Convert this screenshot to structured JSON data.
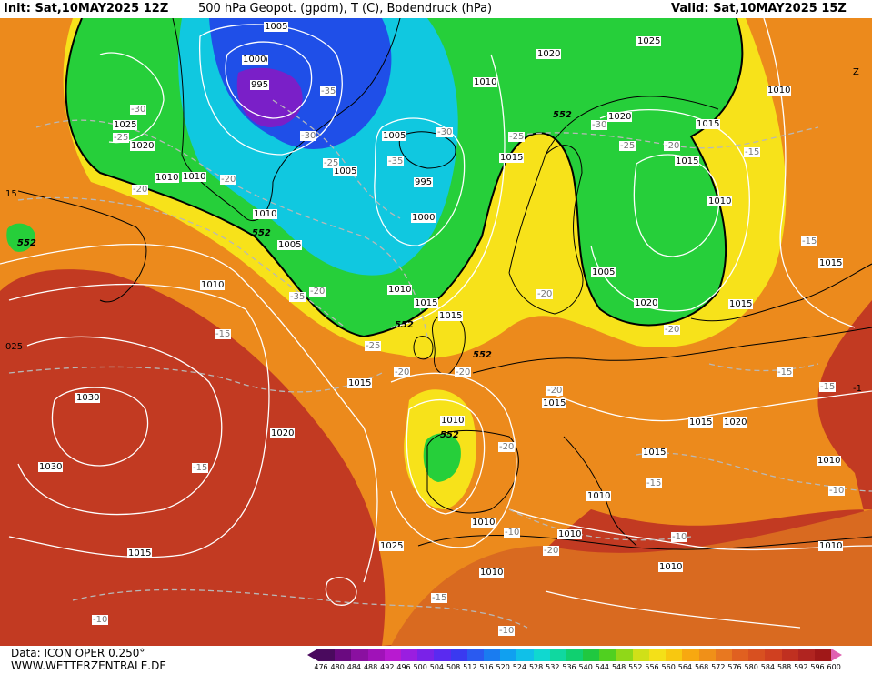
{
  "header": {
    "init": "Init: Sat,10MAY2025 12Z",
    "product": "500 hPa Geopot. (gpdm), T (C), Bodendruck (hPa)",
    "valid": "Valid: Sat,10MAY2025 15Z"
  },
  "footer": {
    "data_source": "Data: ICON OPER 0.250°",
    "website": "WWW.WETTERZENTRALE.DE"
  },
  "colors": {
    "ocean_red": "#c23a22",
    "orange": "#ec8a1c",
    "yellow": "#f7e21a",
    "green": "#26cf3a",
    "cyan": "#10c8e0",
    "blue": "#1f4fe8",
    "purple": "#7a1fc8"
  },
  "legend": {
    "values": [
      "476",
      "480",
      "484",
      "488",
      "492",
      "496",
      "500",
      "504",
      "508",
      "512",
      "516",
      "520",
      "524",
      "528",
      "532",
      "536",
      "540",
      "544",
      "548",
      "552",
      "556",
      "560",
      "564",
      "568",
      "572",
      "576",
      "580",
      "584",
      "588",
      "592",
      "596",
      "600"
    ],
    "colors": [
      "#4a0a5e",
      "#6a0a80",
      "#8a10a0",
      "#a012b8",
      "#b81ad0",
      "#9a1ee0",
      "#7a22e8",
      "#5a2af0",
      "#3a3af0",
      "#2a5af0",
      "#1a7cf0",
      "#10a0f0",
      "#10c0e8",
      "#10d8d0",
      "#10d8a0",
      "#10d070",
      "#20c840",
      "#50d020",
      "#90d818",
      "#d0e018",
      "#f4e018",
      "#f8c810",
      "#f8a810",
      "#f09018",
      "#e87820",
      "#e06020",
      "#d85020",
      "#d04020",
      "#c03020",
      "#b02420",
      "#a01818",
      "#e060b0"
    ]
  },
  "map_labels": {
    "isobars": [
      "1005",
      "1000",
      "995",
      "1025",
      "1020",
      "1010",
      "1010",
      "1005",
      "1000",
      "1005",
      "995",
      "1000",
      "1015",
      "1005",
      "1010",
      "1015",
      "1020",
      "1025",
      "1020",
      "1010",
      "1015",
      "1010",
      "1005",
      "1020",
      "1015",
      "1010",
      "1015",
      "1015",
      "1015",
      "1030",
      "1030",
      "1020",
      "1015",
      "1010",
      "1015",
      "1020",
      "1015",
      "1015",
      "1010",
      "1010",
      "1015",
      "1025",
      "1010",
      "1010",
      "1010",
      "1010",
      "1010",
      "1010",
      "1010"
    ],
    "temps": [
      "-30",
      "-25",
      "-35",
      "-35",
      "-30",
      "-25",
      "-20",
      "-20",
      "-35",
      "-30",
      "-25",
      "-25",
      "-20",
      "-30",
      "-20",
      "-25",
      "-20",
      "-15",
      "-15",
      "-20",
      "-20",
      "-20",
      "-15",
      "-15",
      "-20",
      "-20",
      "-15",
      "-20",
      "-15",
      "-10",
      "-15",
      "-10",
      "-10",
      "-10",
      "-15",
      "-10"
    ],
    "geopot": [
      "552",
      "552",
      "552",
      "552",
      "552",
      "552"
    ],
    "edge": [
      "15",
      "Z",
      "025",
      "-1"
    ]
  }
}
